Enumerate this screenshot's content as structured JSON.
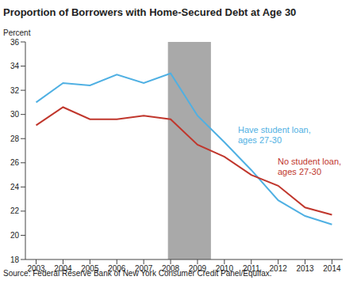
{
  "chart_data": {
    "type": "line",
    "title": "Proportion of Borrowers with Home-Secured Debt at Age 30",
    "y_label": "Percent",
    "source": "Source: Federal Reserve Bank of New York Consumer Credit Panel/Equifax.",
    "x": [
      2003,
      2004,
      2005,
      2006,
      2007,
      2008,
      2009,
      2010,
      2011,
      2012,
      2013,
      2014
    ],
    "series": [
      {
        "name": "Have student loan, ages 27-30",
        "color": "#4fb0e3",
        "values": [
          31.0,
          32.6,
          32.4,
          33.3,
          32.6,
          33.4,
          29.9,
          27.7,
          25.4,
          22.9,
          21.6,
          20.9
        ]
      },
      {
        "name": "No student loan, ages 27-30",
        "color": "#c0362c",
        "values": [
          29.1,
          30.6,
          29.6,
          29.6,
          29.9,
          29.6,
          27.5,
          26.5,
          25.0,
          24.1,
          22.3,
          21.7
        ]
      }
    ],
    "recession": [
      2007.9,
      2009.5
    ],
    "xlim": [
      2002.6,
      2014.4
    ],
    "xticks": [
      2003,
      2004,
      2005,
      2006,
      2007,
      2008,
      2009,
      2010,
      2011,
      2012,
      2013,
      2014
    ],
    "ylim": [
      18,
      36
    ],
    "yticks": [
      18,
      20,
      22,
      24,
      26,
      28,
      30,
      32,
      34,
      36
    ],
    "grid": false
  }
}
